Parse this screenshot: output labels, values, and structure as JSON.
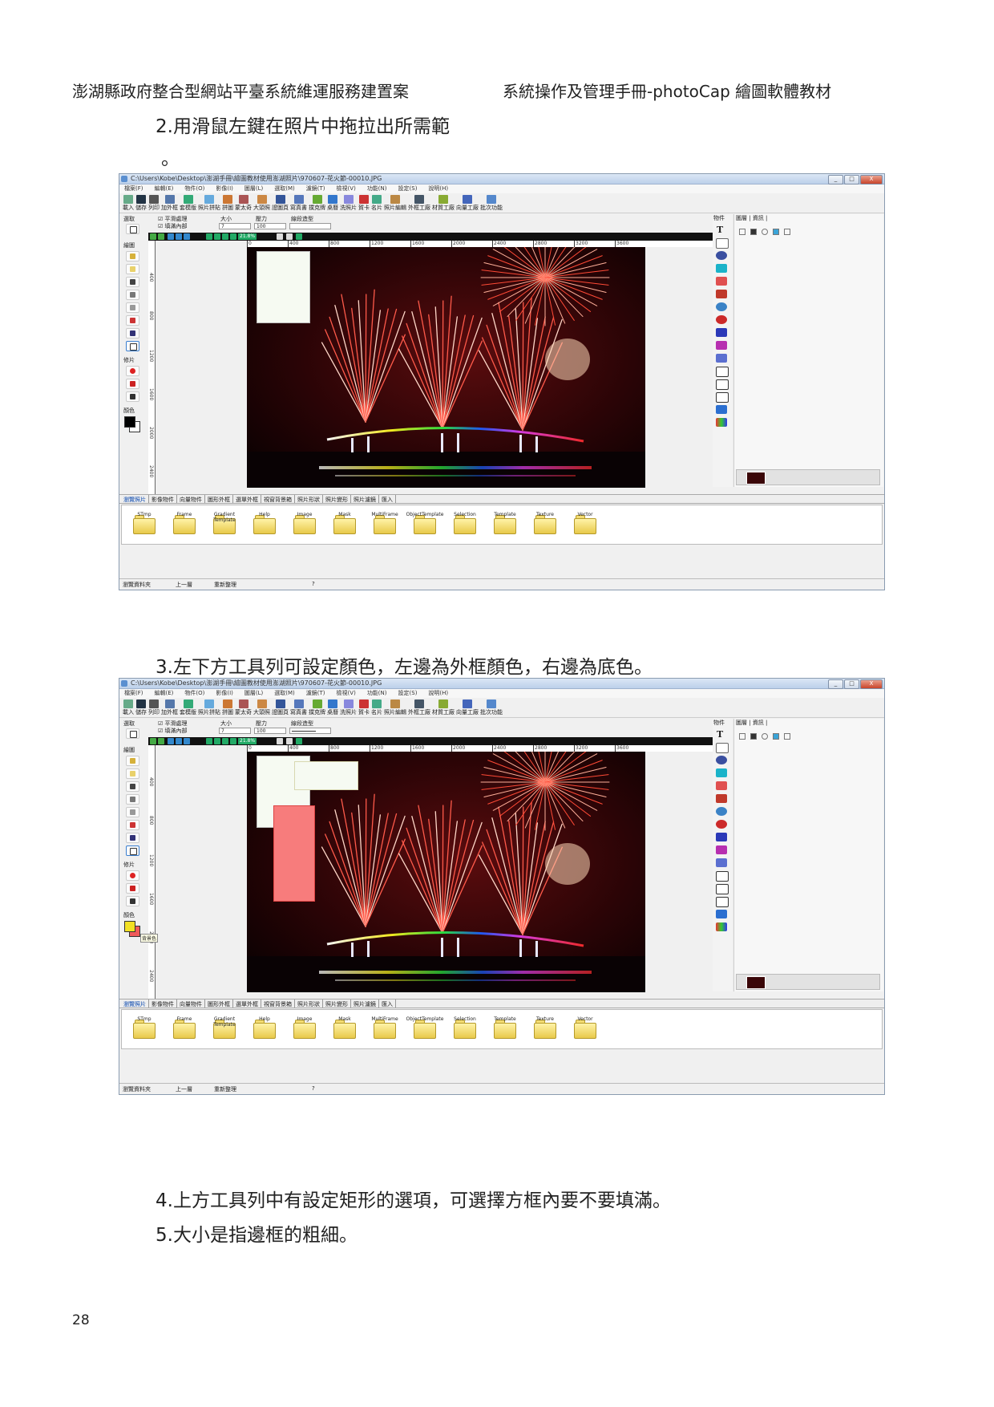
{
  "header": {
    "left": "澎湖縣政府整合型網站平臺系統維運服務建置案",
    "right": "系統操作及管理手冊-photoCap 繪圖軟體教材"
  },
  "steps": {
    "step2_line1": "2.用滑鼠左鍵在照片中拖拉出所需範",
    "step2_line2": "。",
    "step3": "3.左下方工具列可設定顏色，左邊為外框顏色，右邊為底色。",
    "step4": "4.上方工具列中有設定矩形的選項，可選擇方框內要不要填滿。",
    "step5": "5.大小是指邊框的粗細。"
  },
  "page_number": "28",
  "app": {
    "title": "C:\\Users\\Kobe\\Desktop\\澎湖手冊\\繪圖教材使用澎湖照片\\970607-花火節-00010.JPG",
    "menu": [
      "檔案(F)",
      "編輯(E)",
      "物件(O)",
      "影像(I)",
      "圖層(L)",
      "選取(M)",
      "濾鏡(T)",
      "檢視(V)",
      "功能(N)",
      "設定(S)",
      "說明(H)"
    ],
    "toolbar": [
      "載入",
      "儲存",
      "列印",
      "加外框",
      "套模版",
      "照片拼貼",
      "拼圖",
      "蒙太奇",
      "大頭照",
      "證圖頁",
      "寫真書",
      "撲克牌",
      "桌曆",
      "洗照片",
      "賀卡",
      "名片",
      "照片編輯",
      "外框工廠",
      "材質工廠",
      "向量工廠",
      "批次功能"
    ],
    "options": {
      "smooth": "平滑處理",
      "fill": "填滿內部",
      "size_label": "大小",
      "pressure_label": "壓力",
      "line_label": "線段造型",
      "size_value": "7",
      "pressure_value": "100"
    },
    "left_sections": {
      "select": "選取",
      "draw": "繪圖",
      "fix": "修片",
      "color": "顏色"
    },
    "zoom": "21.8%",
    "ruler_ticks": [
      "0",
      "400",
      "800",
      "1200",
      "1600",
      "2000",
      "2400",
      "2800",
      "3200",
      "3600"
    ],
    "vruler_ticks": [
      "400",
      "800",
      "1200",
      "1600",
      "2000",
      "2400"
    ],
    "right_tabs": {
      "objects": "物件",
      "layers": "圖層",
      "info": "資訊"
    },
    "bottom_tabs": [
      "瀏覽照片",
      "影像物件",
      "向量物件",
      "圖形外框",
      "選單外框",
      "視窗背景箱",
      "照片形狀",
      "照片變形",
      "照片濾鏡",
      "匯入"
    ],
    "folders": [
      "STmp",
      "Frame",
      "Gradient\nTemplate",
      "Help",
      "Image",
      "Mask",
      "MultiFrame",
      "ObjectTemplate",
      "Selection",
      "Template",
      "Texture",
      "Vector"
    ],
    "status": {
      "back": "上一層",
      "refresh": "重新整理",
      "path": "瀏覽資料夾"
    },
    "tooltip2": "背景色",
    "win_close": "X",
    "win_min": "_",
    "win_max": "□"
  },
  "colors": {
    "rect_white": "#f6faf2",
    "rect_red": "#f77c7c",
    "fg_color2": "#f2e024",
    "bg_color2": "#f05a5a"
  }
}
